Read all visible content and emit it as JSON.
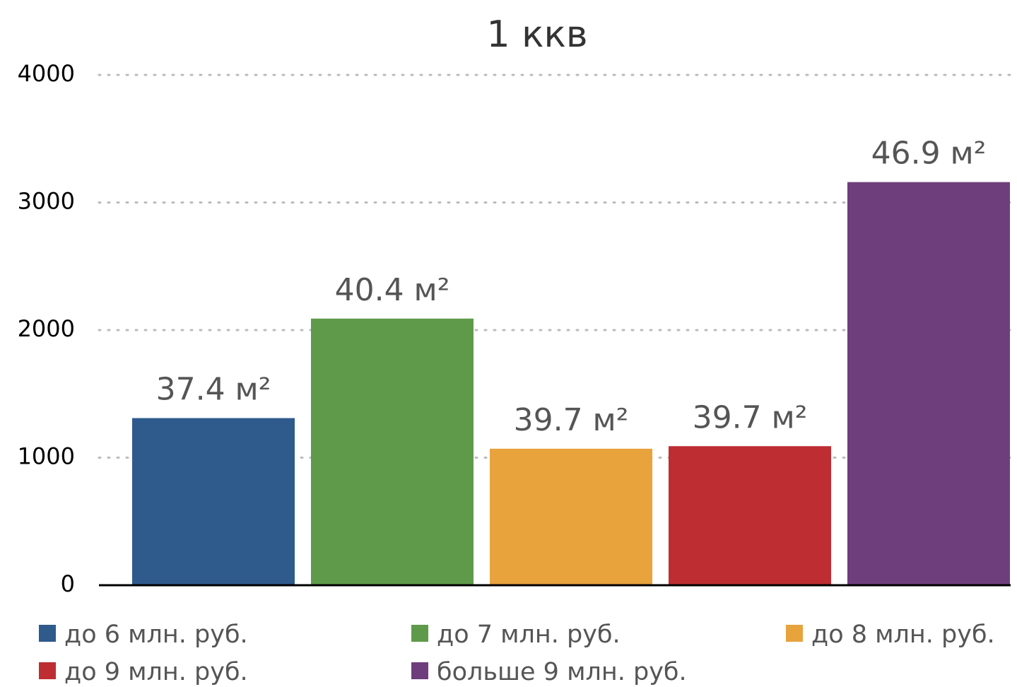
{
  "chart_data": {
    "type": "bar",
    "title": "1 ккв",
    "categories": [
      null
    ],
    "series": [
      {
        "name": "до 6 млн. руб.",
        "color": "#2e5a8c",
        "values": [
          1310
        ]
      },
      {
        "name": "до 7 млн. руб.",
        "color": "#5e9a4a",
        "values": [
          2090
        ]
      },
      {
        "name": "до 8 млн. руб.",
        "color": "#e8a33d",
        "values": [
          1070
        ]
      },
      {
        "name": "до 9 млн. руб.",
        "color": "#bd2d32",
        "values": [
          1090
        ]
      },
      {
        "name": "больше 9 млн. руб.",
        "color": "#6e3e7c",
        "values": [
          3160
        ]
      }
    ],
    "bar_labels": [
      "37.4 м²",
      "40.4 м²",
      "39.7 м²",
      "39.7 м²",
      "46.9 м²"
    ],
    "ylim": [
      0,
      4000
    ],
    "yticks": [
      0,
      1000,
      2000,
      3000,
      4000
    ],
    "grid": true
  }
}
